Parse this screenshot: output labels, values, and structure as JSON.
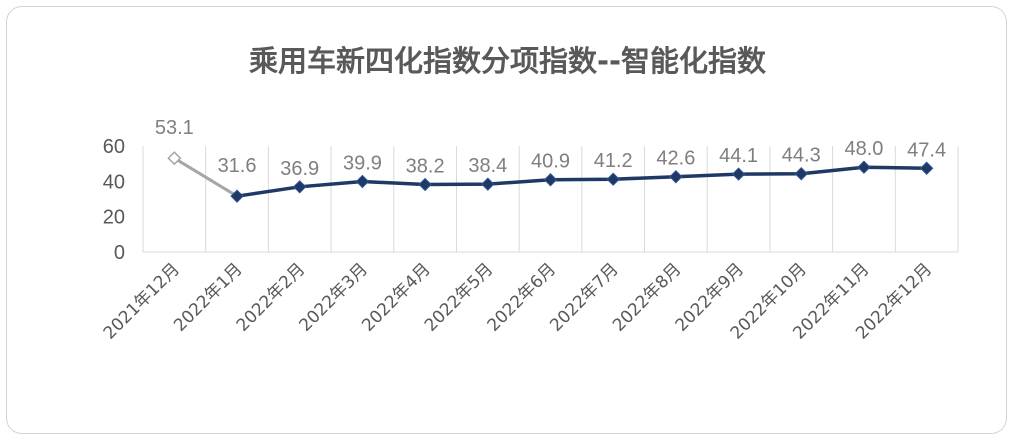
{
  "chart_data": {
    "type": "line",
    "title": "乘用车新四化指数分项指数--智能化指数",
    "xlabel": "",
    "ylabel": "",
    "ylim": [
      0,
      60
    ],
    "yticks": [
      0,
      20,
      40,
      60
    ],
    "grid": "vertical",
    "legend": "none",
    "categories": [
      "2021年12月",
      "2022年1月",
      "2022年2月",
      "2022年3月",
      "2022年4月",
      "2022年5月",
      "2022年6月",
      "2022年7月",
      "2022年8月",
      "2022年9月",
      "2022年10月",
      "2022年11月",
      "2022年12月"
    ],
    "values": [
      53.1,
      31.6,
      36.9,
      39.9,
      38.2,
      38.4,
      40.9,
      41.2,
      42.6,
      44.1,
      44.3,
      48.0,
      47.4
    ],
    "data_labels": [
      "53.1",
      "31.6",
      "36.9",
      "39.9",
      "38.2",
      "38.4",
      "40.9",
      "41.2",
      "42.6",
      "44.1",
      "44.3",
      "48.0",
      "47.4"
    ],
    "colors": {
      "main": "#1f3864",
      "previous": "#a6a6a6",
      "grid": "#d9d9d9",
      "text": "#595959"
    }
  }
}
